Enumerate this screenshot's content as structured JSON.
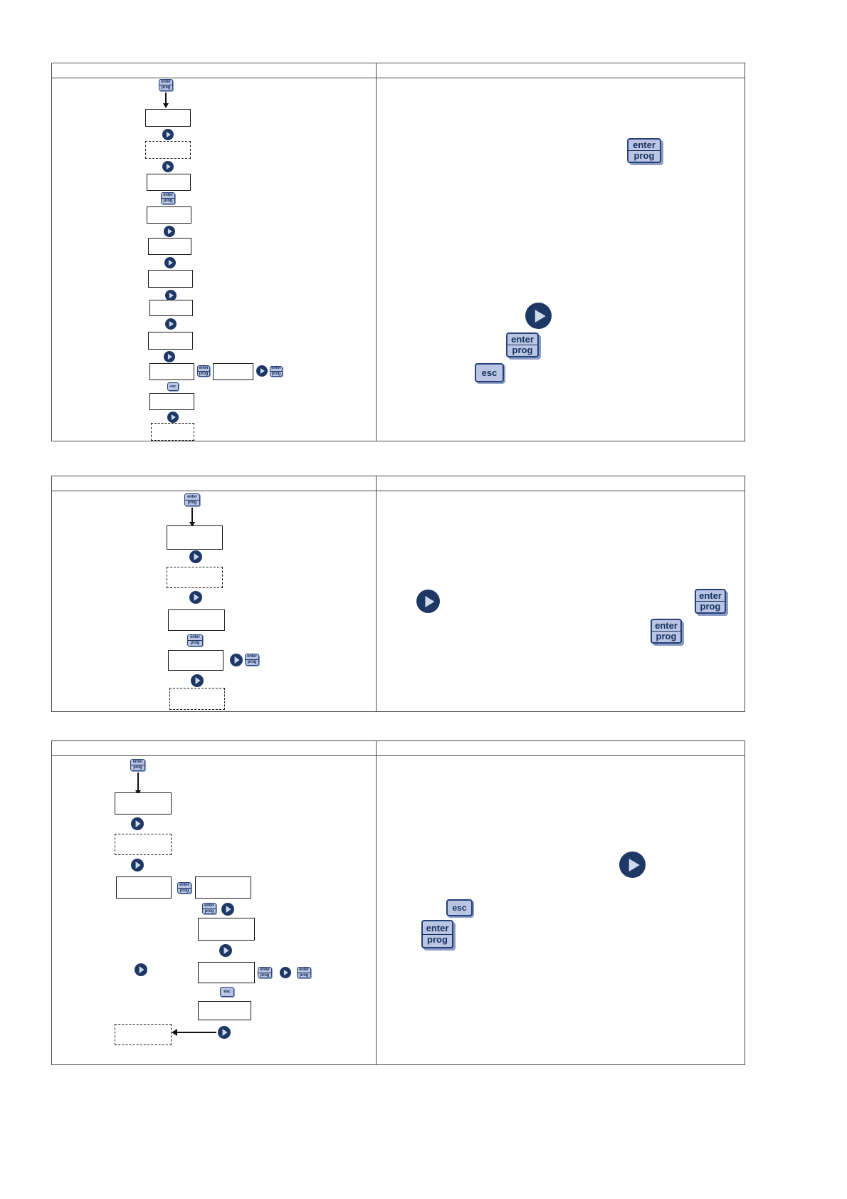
{
  "document": {
    "background": "#ffffff"
  },
  "keys": {
    "enter_prog": {
      "line1": "enter",
      "line2": "prog"
    },
    "esc": {
      "label": "esc"
    }
  },
  "icons": {
    "play": "play-icon",
    "enter_prog": "enter-prog-key-icon",
    "esc": "esc-key-icon",
    "arrow_down": "flow-arrow-down-icon",
    "arrow_left": "flow-arrow-left-icon"
  },
  "colors": {
    "key_background": "#b9c5e2",
    "key_text": "#17305e",
    "key_border": "#24407a",
    "key_shadow": "#8a9cc4",
    "play_circle": "#1e3865",
    "play_triangle": "#cfd9ec",
    "flow_box_border": "#1a1a1a",
    "panel_border": "#4a4a4a",
    "arrow": "#111111"
  },
  "sections": [
    {
      "header": ""
    },
    {
      "header": ""
    },
    {
      "header": ""
    }
  ]
}
